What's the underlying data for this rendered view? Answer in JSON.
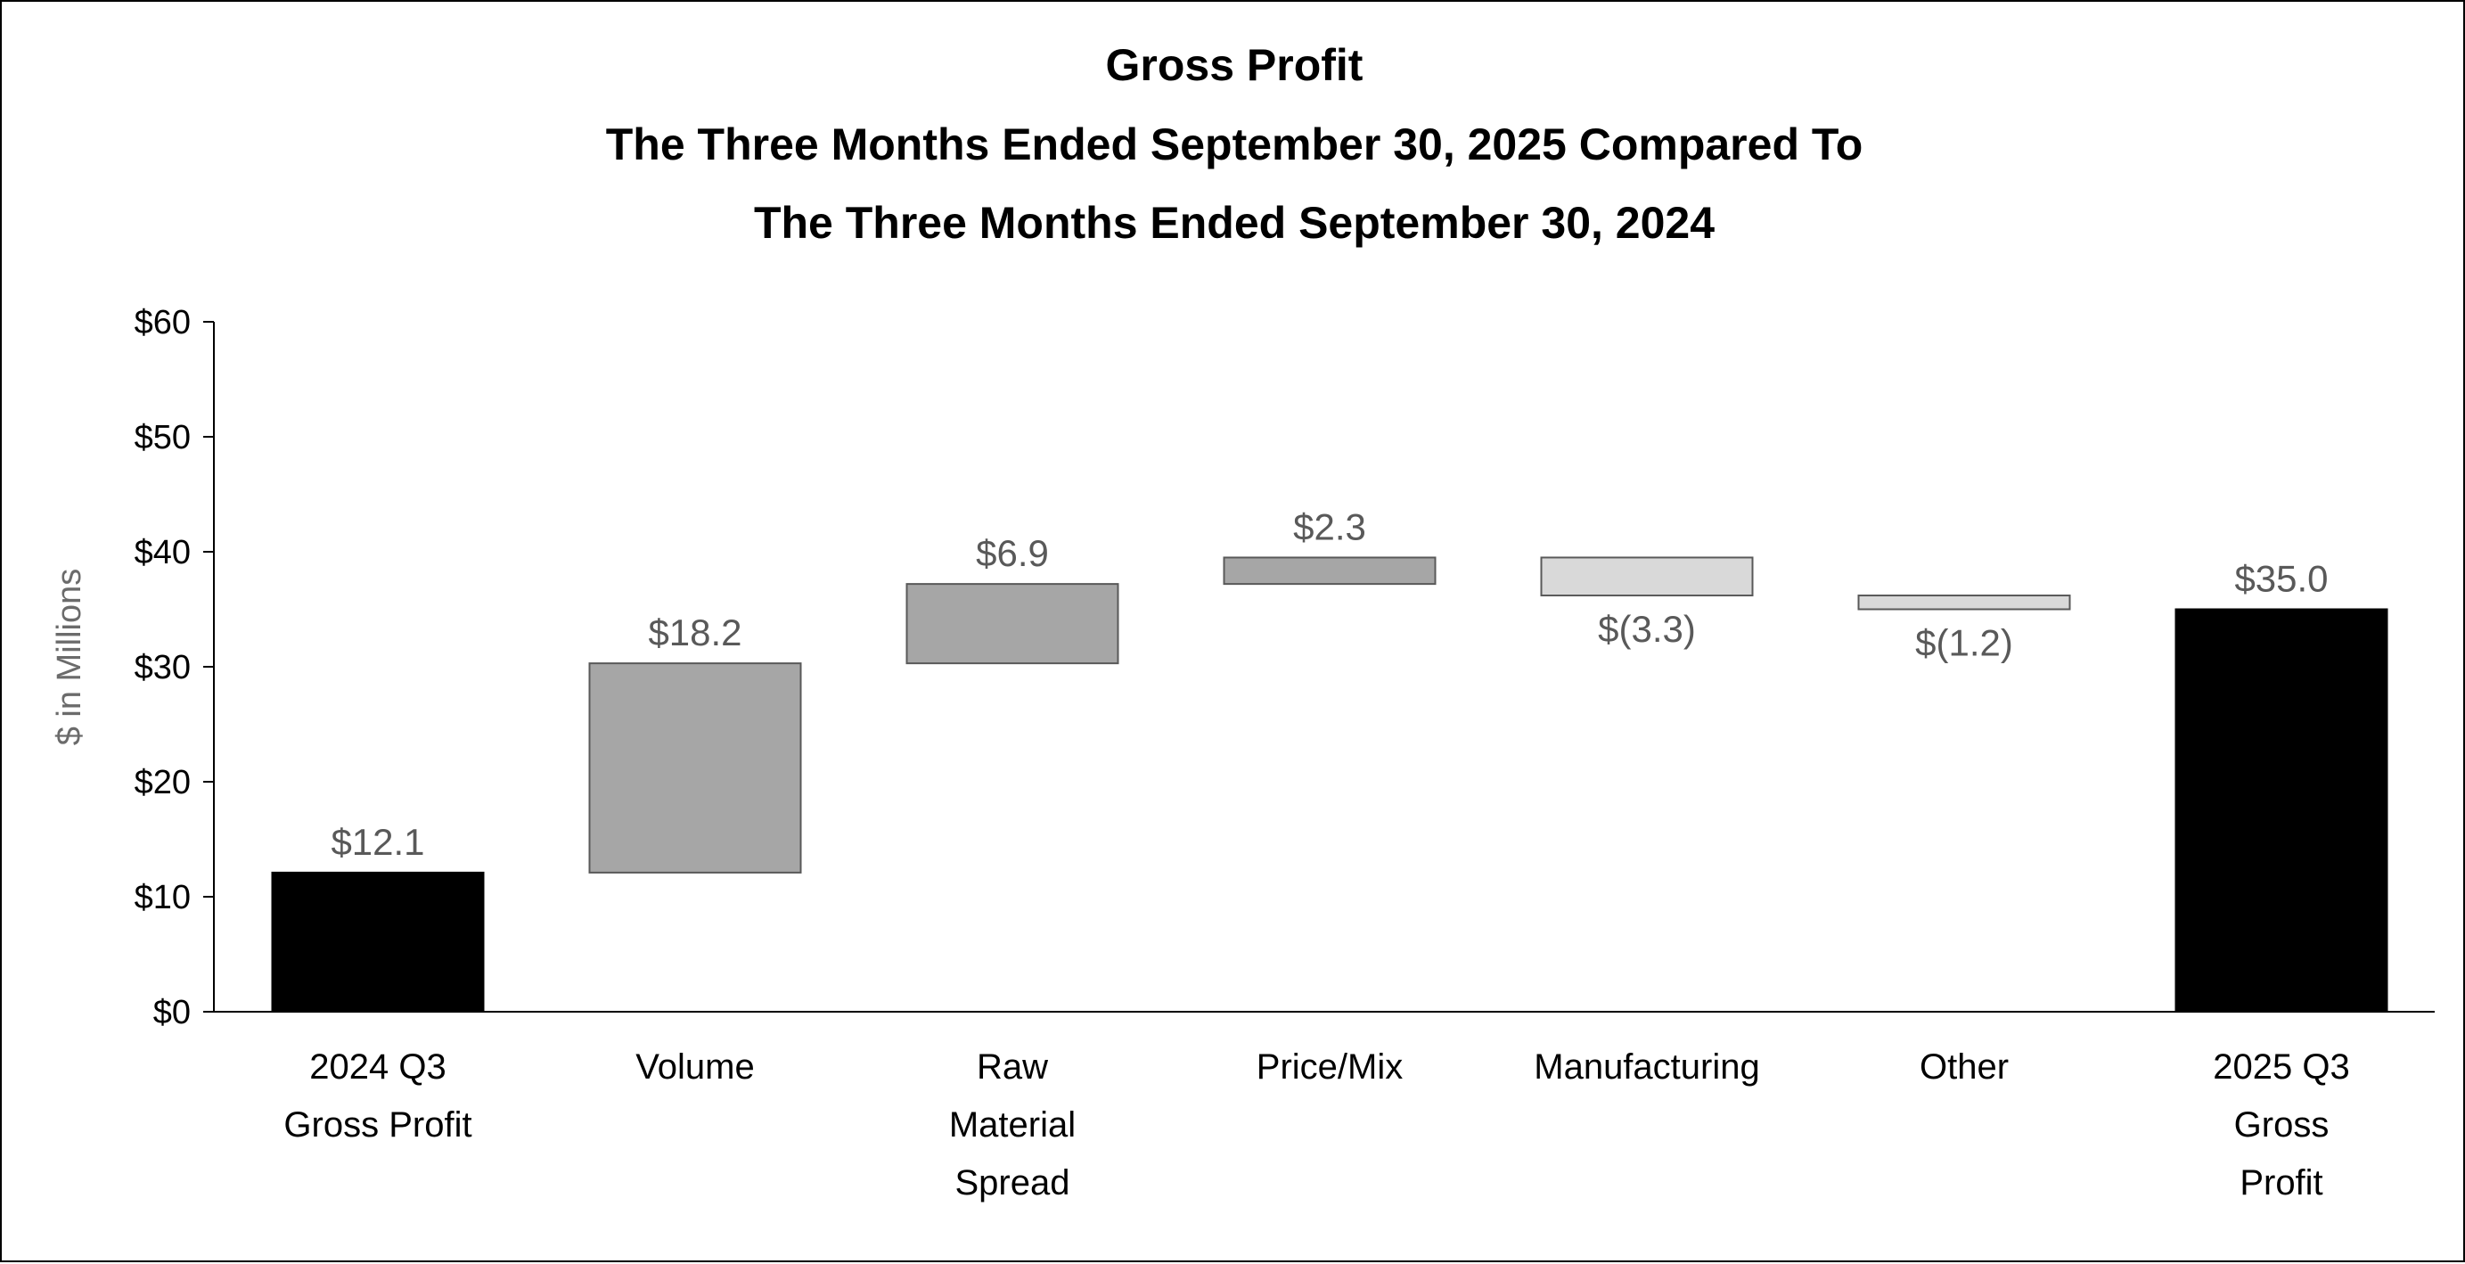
{
  "chart_data": {
    "type": "bar",
    "subtype": "waterfall",
    "title": [
      "Gross Profit",
      "The Three Months Ended September 30, 2025 Compared To",
      "The Three Months Ended September 30, 2024"
    ],
    "ylabel": "$ in Millions",
    "xlabel": "",
    "ylim": [
      0,
      60
    ],
    "yticks": [
      0,
      10,
      20,
      30,
      40,
      50,
      60
    ],
    "ytick_labels": [
      "$0",
      "$10",
      "$20",
      "$30",
      "$40",
      "$50",
      "$60"
    ],
    "grid": false,
    "legend": "none",
    "categories": [
      [
        "2024 Q3",
        "Gross Profit"
      ],
      [
        "Volume"
      ],
      [
        "Raw",
        "Material",
        "Spread"
      ],
      [
        "Price/Mix"
      ],
      [
        "Manufacturing"
      ],
      [
        "Other"
      ],
      [
        "2025 Q3",
        "Gross",
        "Profit"
      ]
    ],
    "bars": [
      {
        "kind": "total",
        "start": 0,
        "end": 12.1,
        "label": "$12.1"
      },
      {
        "kind": "increase",
        "start": 12.1,
        "end": 30.3,
        "label": "$18.2"
      },
      {
        "kind": "increase",
        "start": 30.3,
        "end": 37.2,
        "label": "$6.9"
      },
      {
        "kind": "increase",
        "start": 37.2,
        "end": 39.5,
        "label": "$2.3"
      },
      {
        "kind": "decrease",
        "start": 39.5,
        "end": 36.2,
        "label": "$(3.3)"
      },
      {
        "kind": "decrease",
        "start": 36.2,
        "end": 35.0,
        "label": "$(1.2)"
      },
      {
        "kind": "total",
        "start": 0,
        "end": 35.0,
        "label": "$35.0"
      }
    ],
    "colors": {
      "total": "#000000",
      "increase": "#a6a6a6",
      "decrease": "#d9d9d9",
      "outline": "#595959",
      "data_label": "#595959",
      "axis": "#000000"
    }
  }
}
